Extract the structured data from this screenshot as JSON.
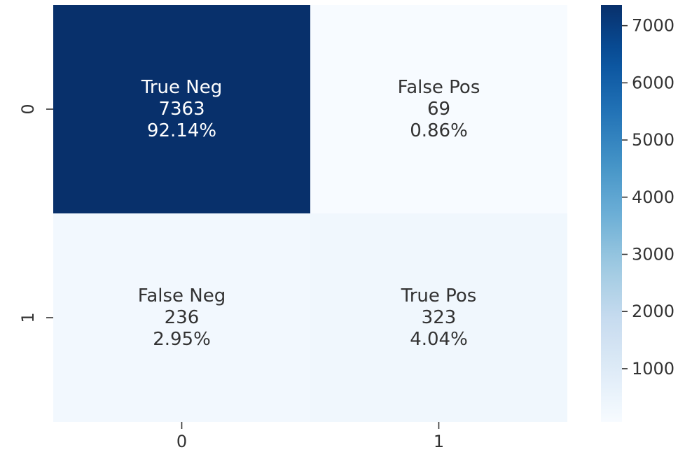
{
  "chart_data": {
    "type": "heatmap",
    "title": "",
    "xlabel": "",
    "ylabel": "",
    "x_categories": [
      "0",
      "1"
    ],
    "y_categories": [
      "0",
      "1"
    ],
    "cells": [
      {
        "row": 0,
        "col": 0,
        "value": 7363,
        "label": "True Neg",
        "count_text": "7363",
        "percent_text": "92.14%"
      },
      {
        "row": 0,
        "col": 1,
        "value": 69,
        "label": "False Pos",
        "count_text": "69",
        "percent_text": "0.86%"
      },
      {
        "row": 1,
        "col": 0,
        "value": 236,
        "label": "False Neg",
        "count_text": "236",
        "percent_text": "2.95%"
      },
      {
        "row": 1,
        "col": 1,
        "value": 323,
        "label": "True Pos",
        "count_text": "323",
        "percent_text": "4.04%"
      }
    ],
    "colormap": "Blues",
    "colorbar": {
      "range": [
        69,
        7363
      ],
      "ticks": [
        1000,
        2000,
        3000,
        4000,
        5000,
        6000,
        7000
      ],
      "tick_labels": [
        "1000",
        "2000",
        "3000",
        "4000",
        "5000",
        "6000",
        "7000"
      ]
    },
    "colors": {
      "low": "#f7fbff",
      "high": "#08306b",
      "text_on_dark": "#ffffff",
      "text_on_light": "#333333"
    }
  }
}
